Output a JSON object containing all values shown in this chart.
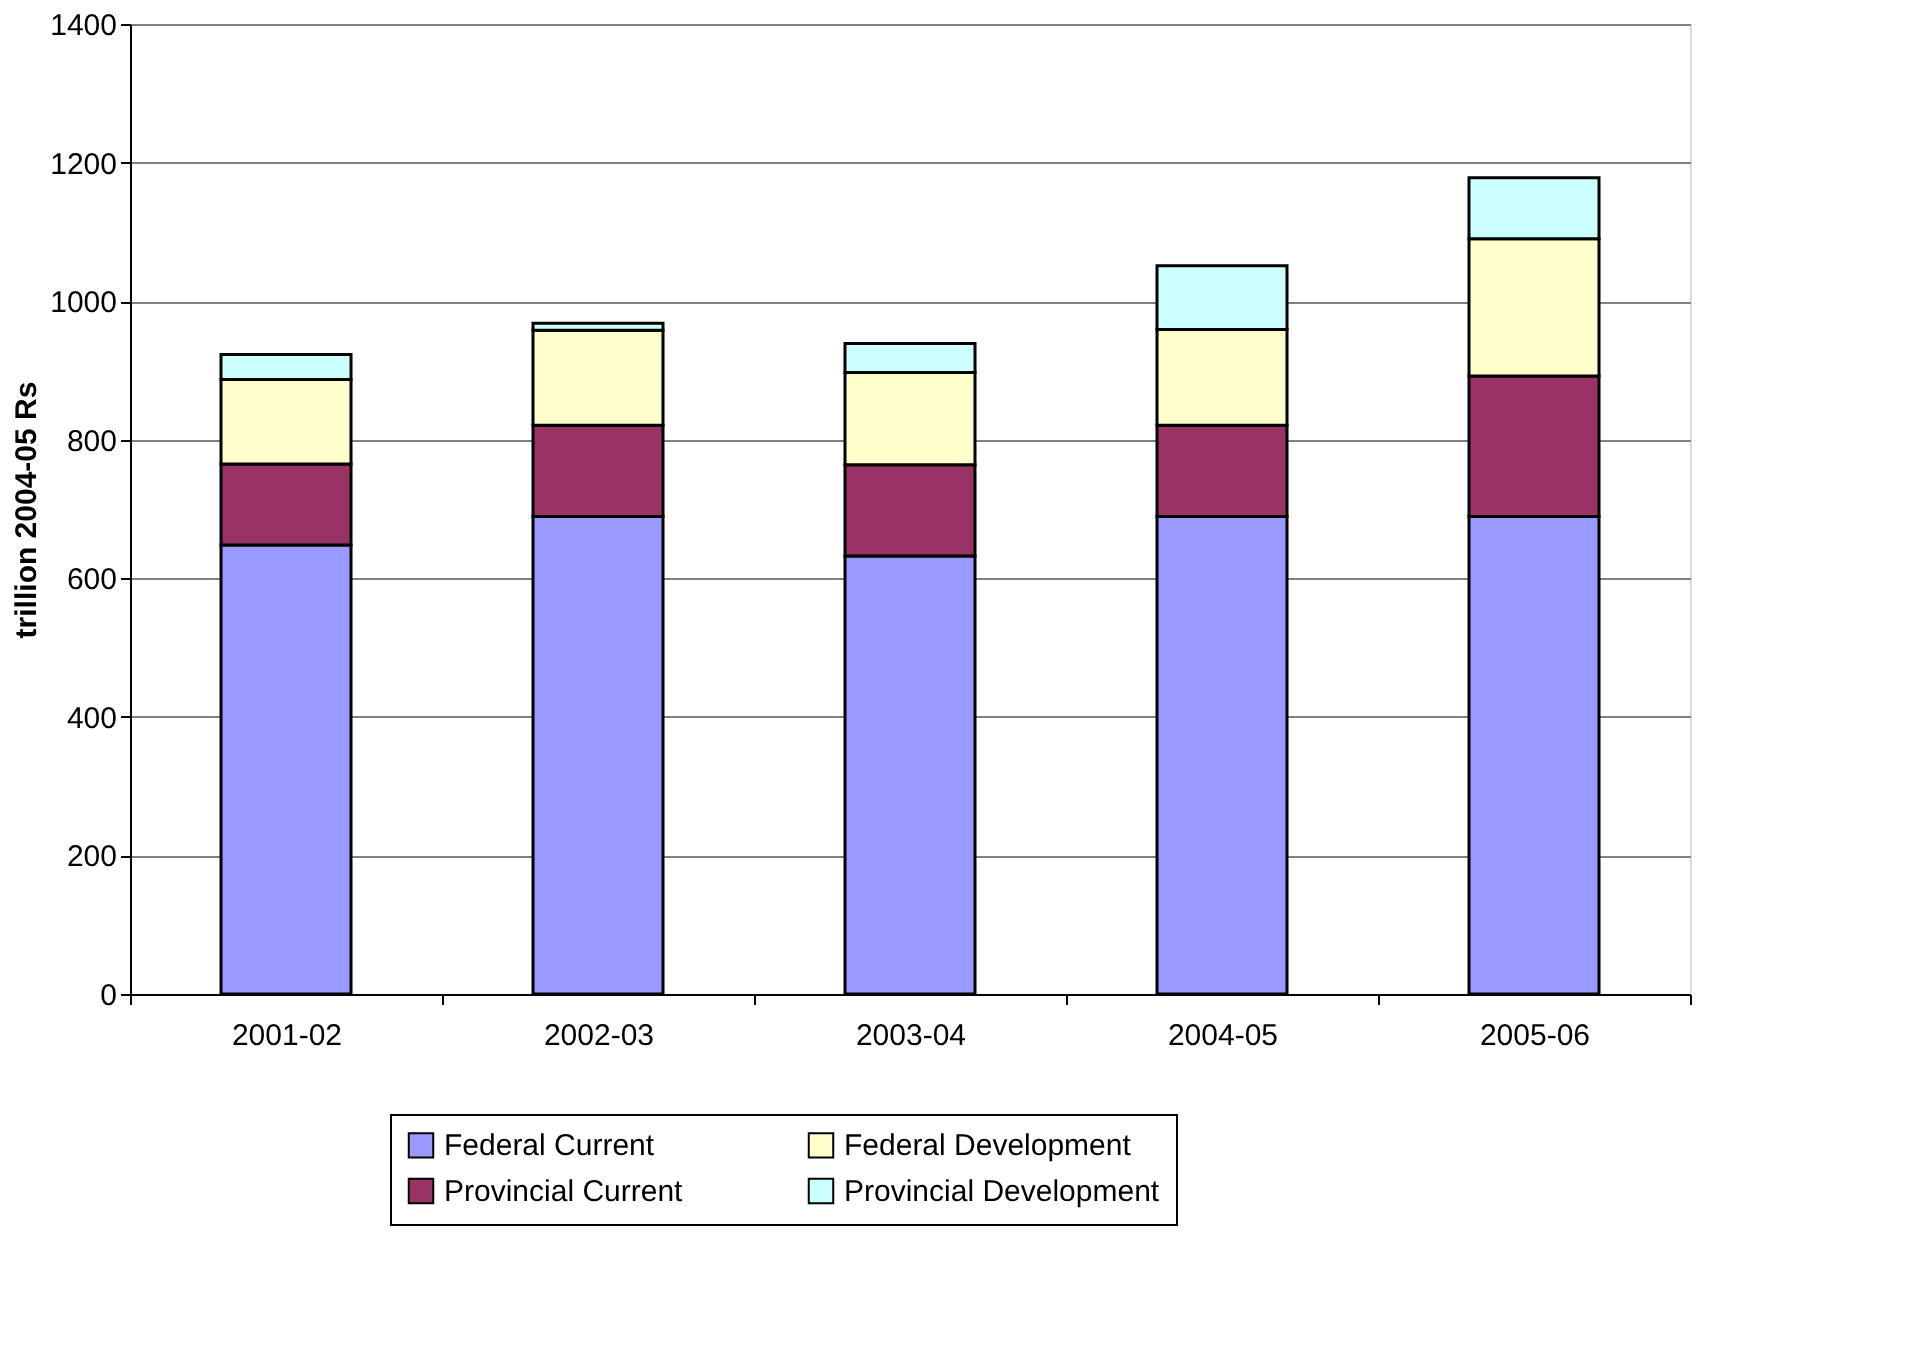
{
  "chart_data": {
    "type": "bar",
    "stacked": true,
    "ylabel": "trillion 2004-05 Rs",
    "categories": [
      "2001-02",
      "2002-03",
      "2003-04",
      "2004-05",
      "2005-06"
    ],
    "series": [
      {
        "name": "Federal Current",
        "color": "#9999ff",
        "values": [
          648,
          689,
          632,
          689,
          689
        ]
      },
      {
        "name": "Provincial Current",
        "color": "#993366",
        "values": [
          117,
          132,
          132,
          132,
          203
        ]
      },
      {
        "name": "Federal Development",
        "color": "#ffffcc",
        "values": [
          122,
          137,
          133,
          138,
          198
        ]
      },
      {
        "name": "Provincial Development",
        "color": "#ccffff",
        "values": [
          36,
          10,
          42,
          92,
          88
        ]
      }
    ],
    "ylim": [
      0,
      1400
    ],
    "yticks": [
      0,
      200,
      400,
      600,
      800,
      1000,
      1200,
      1400
    ],
    "grid": "y",
    "legend": "bottom"
  }
}
